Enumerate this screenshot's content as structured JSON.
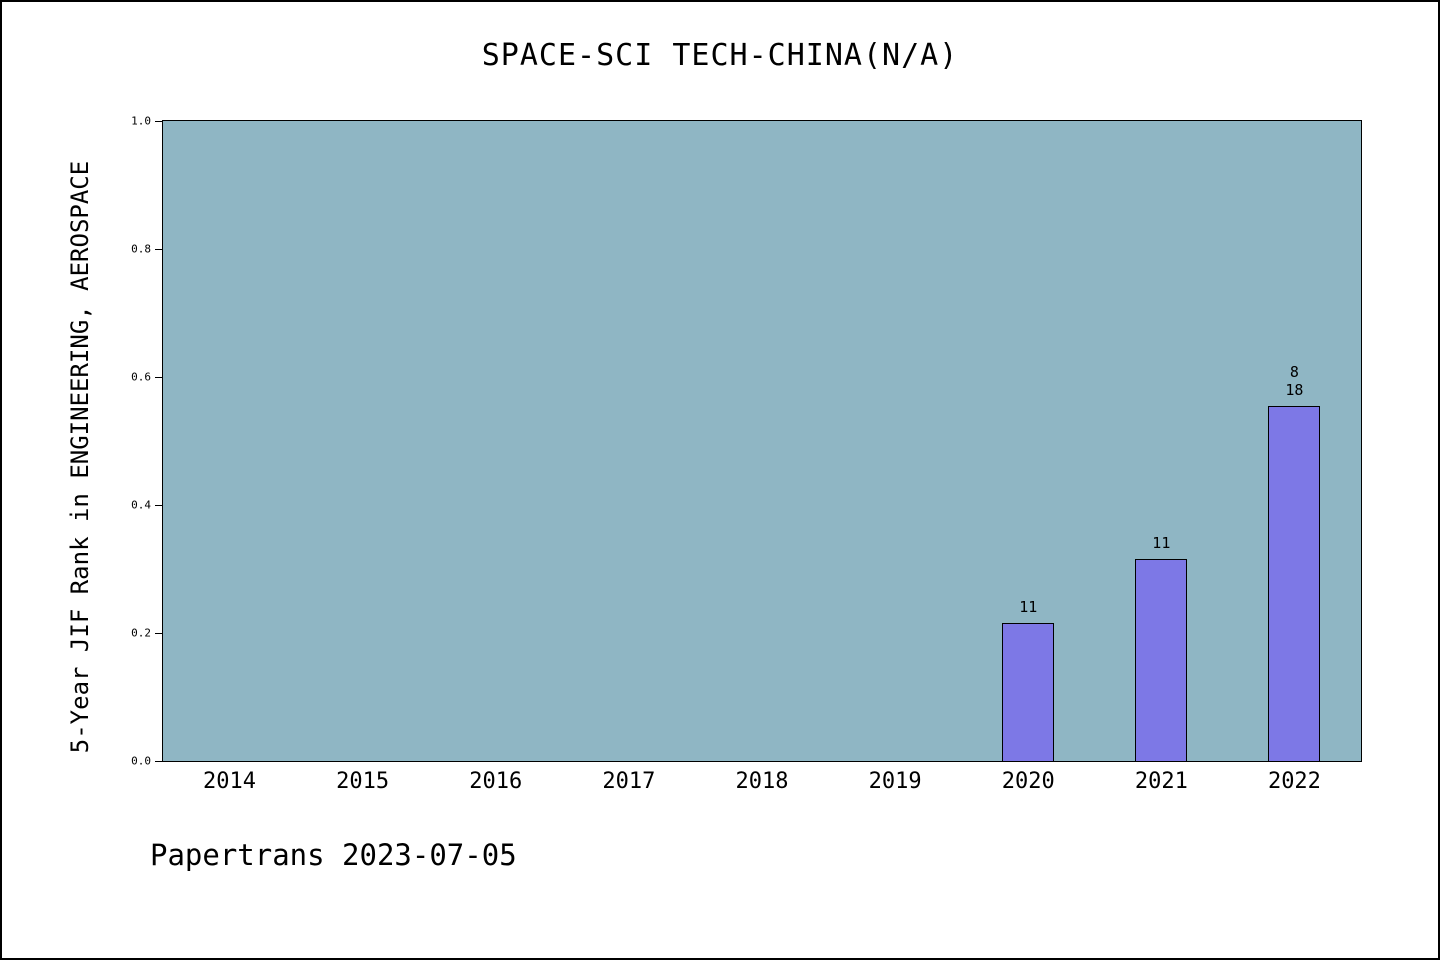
{
  "title": "SPACE-SCI TECH-CHINA(N/A)",
  "footer": "Papertrans 2023-07-05",
  "chart_data": {
    "type": "bar",
    "title": "SPACE-SCI TECH-CHINA(N/A)",
    "xlabel": "",
    "ylabel": "5-Year JIF Rank in ENGINEERING, AEROSPACE",
    "ylim": [
      0.0,
      1.0
    ],
    "yticks": [
      "0.0",
      "0.2",
      "0.4",
      "0.6",
      "0.8",
      "1.0"
    ],
    "categories": [
      "2014",
      "2015",
      "2016",
      "2017",
      "2018",
      "2019",
      "2020",
      "2021",
      "2022"
    ],
    "values": [
      null,
      null,
      null,
      null,
      null,
      null,
      0.215,
      0.315,
      0.555
    ],
    "bar_labels": [
      null,
      null,
      null,
      null,
      null,
      null,
      "11",
      "11",
      "8\n18"
    ],
    "grid": false,
    "legend": "none",
    "colors": {
      "plot_bg": "#8fb6c4",
      "bar_fill": "#7d78e6",
      "bar_border": "#000000"
    }
  }
}
